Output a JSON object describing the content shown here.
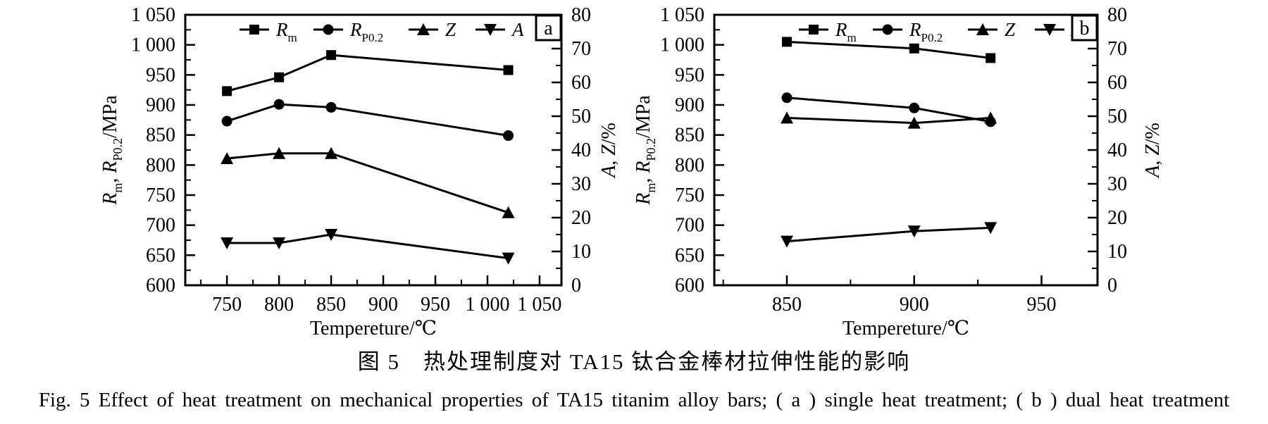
{
  "figure": {
    "caption_zh": "图 5　热处理制度对 TA15 钛合金棒材拉伸性能的影响",
    "caption_en": "Fig. 5   Effect of heat treatment on mechanical properties of TA15 titanim alloy bars; ( a ) single heat treatment; ( b ) dual heat treatment"
  },
  "colors": {
    "ink": "#000000",
    "background": "#ffffff"
  },
  "chart_data": [
    {
      "type": "line",
      "panel_label": "a",
      "x_axis": {
        "label": "Tempereture/℃",
        "min": 710,
        "max": 1071,
        "majors": [
          {
            "v": 750,
            "label": "750"
          },
          {
            "v": 800,
            "label": "800"
          },
          {
            "v": 850,
            "label": "850"
          },
          {
            "v": 900,
            "label": "900"
          },
          {
            "v": 950,
            "label": "950"
          },
          {
            "v": 1000,
            "label": "1 000"
          },
          {
            "v": 1050,
            "label": "1 050"
          }
        ],
        "minors": [
          725,
          775,
          825,
          875,
          925,
          975,
          1025
        ]
      },
      "y_left": {
        "min": 600,
        "max": 1050,
        "label_segments": [
          {
            "t": "R",
            "i": 1
          },
          {
            "t": "m",
            "sub": 1
          },
          {
            "t": ", "
          },
          {
            "t": "R",
            "i": 1
          },
          {
            "t": "P0.2",
            "sub": 1
          },
          {
            "t": "/MPa"
          }
        ],
        "majors": [
          {
            "v": 600,
            "label": "600"
          },
          {
            "v": 650,
            "label": "650"
          },
          {
            "v": 700,
            "label": "700"
          },
          {
            "v": 750,
            "label": "750"
          },
          {
            "v": 800,
            "label": "800"
          },
          {
            "v": 850,
            "label": "850"
          },
          {
            "v": 900,
            "label": "900"
          },
          {
            "v": 950,
            "label": "950"
          },
          {
            "v": 1000,
            "label": "1 000"
          },
          {
            "v": 1050,
            "label": "1 050"
          }
        ],
        "minors": [
          625,
          675,
          725,
          775,
          825,
          875,
          925,
          975,
          1025
        ]
      },
      "y_right": {
        "min": 0,
        "max": 80,
        "label_segments": [
          {
            "t": "A",
            "i": 1
          },
          {
            "t": ", "
          },
          {
            "t": "Z",
            "i": 1
          },
          {
            "t": "/%"
          }
        ],
        "majors": [
          {
            "v": 0,
            "label": "0"
          },
          {
            "v": 10,
            "label": "10"
          },
          {
            "v": 20,
            "label": "20"
          },
          {
            "v": 30,
            "label": "30"
          },
          {
            "v": 40,
            "label": "40"
          },
          {
            "v": 50,
            "label": "50"
          },
          {
            "v": 60,
            "label": "60"
          },
          {
            "v": 70,
            "label": "70"
          },
          {
            "v": 80,
            "label": "80"
          }
        ],
        "minors": [
          5,
          15,
          25,
          35,
          45,
          55,
          65,
          75
        ]
      },
      "series": [
        {
          "name": "Rm",
          "axis": "left",
          "marker": "square",
          "legend_main": "R",
          "legend_sub": "m",
          "x": [
            750,
            800,
            850,
            1020
          ],
          "y": [
            923,
            946,
            983,
            958
          ]
        },
        {
          "name": "Rp0.2",
          "axis": "left",
          "marker": "circle",
          "legend_main": "R",
          "legend_sub": "P0.2",
          "x": [
            750,
            800,
            850,
            1020
          ],
          "y": [
            873,
            901,
            896,
            849
          ]
        },
        {
          "name": "Z",
          "axis": "right",
          "marker": "triangle-up",
          "legend_main": "Z",
          "x": [
            750,
            800,
            850,
            1020
          ],
          "y": [
            37.5,
            39,
            39,
            21.5
          ]
        },
        {
          "name": "A",
          "axis": "right",
          "marker": "triangle-down",
          "legend_main": "A",
          "x": [
            750,
            800,
            850,
            1020
          ],
          "y": [
            12.5,
            12.5,
            15,
            8
          ]
        }
      ]
    },
    {
      "type": "line",
      "panel_label": "b",
      "x_axis": {
        "label": "Tempereture/℃",
        "min": 821.5,
        "max": 972,
        "majors": [
          {
            "v": 850,
            "label": "850"
          },
          {
            "v": 900,
            "label": "900"
          },
          {
            "v": 950,
            "label": "950"
          }
        ],
        "minors": [
          825,
          875,
          925
        ]
      },
      "y_left": {
        "min": 600,
        "max": 1050,
        "label_segments": [
          {
            "t": "R",
            "i": 1
          },
          {
            "t": "m",
            "sub": 1
          },
          {
            "t": ", "
          },
          {
            "t": "R",
            "i": 1
          },
          {
            "t": "P0.2",
            "sub": 1
          },
          {
            "t": "/MPa"
          }
        ],
        "majors": [
          {
            "v": 600,
            "label": "600"
          },
          {
            "v": 650,
            "label": "650"
          },
          {
            "v": 700,
            "label": "700"
          },
          {
            "v": 750,
            "label": "750"
          },
          {
            "v": 800,
            "label": "800"
          },
          {
            "v": 850,
            "label": "850"
          },
          {
            "v": 900,
            "label": "900"
          },
          {
            "v": 950,
            "label": "950"
          },
          {
            "v": 1000,
            "label": "1 000"
          },
          {
            "v": 1050,
            "label": "1 050"
          }
        ],
        "minors": [
          625,
          675,
          725,
          775,
          825,
          875,
          925,
          975,
          1025
        ]
      },
      "y_right": {
        "min": 0,
        "max": 80,
        "label_segments": [
          {
            "t": "A",
            "i": 1
          },
          {
            "t": ", "
          },
          {
            "t": "Z",
            "i": 1
          },
          {
            "t": "/%"
          }
        ],
        "majors": [
          {
            "v": 0,
            "label": "0"
          },
          {
            "v": 10,
            "label": "10"
          },
          {
            "v": 20,
            "label": "20"
          },
          {
            "v": 30,
            "label": "30"
          },
          {
            "v": 40,
            "label": "40"
          },
          {
            "v": 50,
            "label": "50"
          },
          {
            "v": 60,
            "label": "60"
          },
          {
            "v": 70,
            "label": "70"
          },
          {
            "v": 80,
            "label": "80"
          }
        ],
        "minors": [
          5,
          15,
          25,
          35,
          45,
          55,
          65,
          75
        ]
      },
      "series": [
        {
          "name": "Rm",
          "axis": "left",
          "marker": "square",
          "legend_main": "R",
          "legend_sub": "m",
          "x": [
            850,
            900,
            930
          ],
          "y": [
            1005,
            994,
            978
          ]
        },
        {
          "name": "Rp0.2",
          "axis": "left",
          "marker": "circle",
          "legend_main": "R",
          "legend_sub": "P0.2",
          "x": [
            850,
            900,
            930
          ],
          "y": [
            912,
            895,
            872
          ]
        },
        {
          "name": "Z",
          "axis": "right",
          "marker": "triangle-up",
          "legend_main": "Z",
          "x": [
            850,
            900,
            930
          ],
          "y": [
            49.5,
            48,
            49.5
          ]
        },
        {
          "name": "A",
          "axis": "right",
          "marker": "triangle-down",
          "legend_main": "A",
          "x": [
            850,
            900,
            930
          ],
          "y": [
            13,
            16,
            17
          ]
        }
      ]
    }
  ]
}
